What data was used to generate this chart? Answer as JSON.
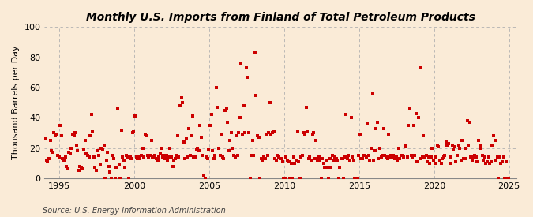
{
  "title": "Monthly U.S. Imports from Finland of Total Petroleum Products",
  "ylabel": "Thousand Barrels per Day",
  "source": "Source: U.S. Energy Information Administration",
  "bg_color": "#faebd7",
  "plot_bg_color": "#faebd7",
  "marker_color": "#cc0000",
  "marker_size": 3.5,
  "xlim": [
    1994.0,
    2025.5
  ],
  "ylim": [
    0,
    100
  ],
  "yticks": [
    0,
    20,
    40,
    60,
    80,
    100
  ],
  "xticks": [
    1995,
    2000,
    2005,
    2010,
    2015,
    2020,
    2025
  ],
  "data": {
    "1994-01": 26,
    "1994-02": 12,
    "1994-03": 11,
    "1994-04": 13,
    "1994-05": 25,
    "1994-06": 18,
    "1994-07": 17,
    "1994-08": 30,
    "1994-09": 28,
    "1994-10": 29,
    "1994-11": 15,
    "1994-12": 14,
    "1995-01": 35,
    "1995-02": 28,
    "1995-03": 13,
    "1995-04": 12,
    "1995-05": 14,
    "1995-06": 8,
    "1995-07": 6,
    "1995-08": 17,
    "1995-09": 16,
    "1995-10": 20,
    "1995-11": 29,
    "1995-12": 28,
    "1996-01": 30,
    "1996-02": 22,
    "1996-03": 18,
    "1996-04": 5,
    "1996-05": 8,
    "1996-06": 7,
    "1996-07": 6,
    "1996-08": 19,
    "1996-09": 25,
    "1996-10": 16,
    "1996-11": 15,
    "1996-12": 14,
    "1997-01": 28,
    "1997-02": 42,
    "1997-03": 31,
    "1997-04": 14,
    "1997-05": 7,
    "1997-06": 5,
    "1997-07": 18,
    "1997-08": 15,
    "1997-09": 9,
    "1997-10": 20,
    "1997-11": 19,
    "1997-12": 22,
    "1998-01": 0,
    "1998-02": 12,
    "1998-03": 17,
    "1998-04": 8,
    "1998-05": 4,
    "1998-06": 0,
    "1998-07": 15,
    "1998-08": 13,
    "1998-09": 0,
    "1998-10": 7,
    "1998-11": 46,
    "1998-12": 9,
    "1999-01": 0,
    "1999-02": 32,
    "1999-03": 14,
    "1999-04": 12,
    "1999-05": 7,
    "1999-06": 15,
    "1999-07": 14,
    "1999-08": 0,
    "1999-09": 14,
    "1999-10": 13,
    "1999-11": 30,
    "1999-12": 31,
    "2000-01": 41,
    "2000-02": 14,
    "2000-03": 13,
    "2000-04": 14,
    "2000-05": 13,
    "2000-06": 15,
    "2000-07": 20,
    "2000-08": 14,
    "2000-09": 29,
    "2000-10": 28,
    "2000-11": 15,
    "2000-12": 14,
    "2001-01": 15,
    "2001-02": 25,
    "2001-03": 14,
    "2001-04": 14,
    "2001-05": 15,
    "2001-06": 13,
    "2001-07": 12,
    "2001-08": 14,
    "2001-09": 16,
    "2001-10": 20,
    "2001-11": 14,
    "2001-12": 15,
    "2002-01": 13,
    "2002-02": 15,
    "2002-03": 12,
    "2002-04": 14,
    "2002-05": 20,
    "2002-06": 14,
    "2002-07": 8,
    "2002-08": 12,
    "2002-09": 13,
    "2002-10": 15,
    "2002-11": 28,
    "2002-12": 14,
    "2003-01": 48,
    "2003-02": 53,
    "2003-03": 50,
    "2003-04": 24,
    "2003-05": 13,
    "2003-06": 26,
    "2003-07": 14,
    "2003-08": 33,
    "2003-09": 15,
    "2003-10": 28,
    "2003-11": 41,
    "2003-12": 14,
    "2004-01": 14,
    "2004-02": 19,
    "2004-03": 20,
    "2004-04": 18,
    "2004-05": 35,
    "2004-06": 27,
    "2004-07": 15,
    "2004-08": 2,
    "2004-09": 0,
    "2004-10": 14,
    "2004-11": 13,
    "2004-12": 19,
    "2005-01": 35,
    "2005-02": 42,
    "2005-03": 18,
    "2005-04": 13,
    "2005-05": 15,
    "2005-06": 60,
    "2005-07": 47,
    "2005-08": 20,
    "2005-09": 15,
    "2005-10": 29,
    "2005-11": 14,
    "2005-12": 13,
    "2006-01": 45,
    "2006-02": 46,
    "2006-03": 37,
    "2006-04": 18,
    "2006-05": 25,
    "2006-06": 30,
    "2006-07": 20,
    "2006-08": 15,
    "2006-09": 14,
    "2006-10": 28,
    "2006-11": 15,
    "2006-12": 30,
    "2007-01": 40,
    "2007-02": 76,
    "2007-03": 29,
    "2007-04": 48,
    "2007-05": 30,
    "2007-06": 73,
    "2007-07": 67,
    "2007-08": 30,
    "2007-09": 0,
    "2007-10": 15,
    "2007-11": 25,
    "2007-12": 15,
    "2008-01": 83,
    "2008-02": 55,
    "2008-03": 28,
    "2008-04": 27,
    "2008-05": 0,
    "2008-06": 13,
    "2008-07": 12,
    "2008-08": 14,
    "2008-09": 13,
    "2008-10": 29,
    "2008-11": 15,
    "2008-12": 30,
    "2009-01": 50,
    "2009-02": 29,
    "2009-03": 30,
    "2009-04": 31,
    "2009-05": 13,
    "2009-06": 12,
    "2009-07": 15,
    "2009-08": 14,
    "2009-09": 13,
    "2009-10": 13,
    "2009-11": 11,
    "2009-12": 0,
    "2010-01": 0,
    "2010-02": 14,
    "2010-03": 12,
    "2010-04": 11,
    "2010-05": 0,
    "2010-06": 10,
    "2010-07": 0,
    "2010-08": 14,
    "2010-09": 10,
    "2010-10": 12,
    "2010-11": 31,
    "2010-12": 11,
    "2011-01": 0,
    "2011-02": 14,
    "2011-03": 15,
    "2011-04": 30,
    "2011-05": 29,
    "2011-06": 47,
    "2011-07": 31,
    "2011-08": 13,
    "2011-09": 14,
    "2011-10": 12,
    "2011-11": 29,
    "2011-12": 30,
    "2012-01": 13,
    "2012-02": 25,
    "2012-03": 12,
    "2012-04": 14,
    "2012-05": 12,
    "2012-06": 0,
    "2012-07": 13,
    "2012-08": 10,
    "2012-09": 7,
    "2012-10": 12,
    "2012-11": 7,
    "2012-12": 0,
    "2013-01": 13,
    "2013-02": 7,
    "2013-03": 15,
    "2013-04": 12,
    "2013-05": 14,
    "2013-06": 13,
    "2013-07": 12,
    "2013-08": 0,
    "2013-09": 7,
    "2013-10": 13,
    "2013-11": 13,
    "2013-12": 0,
    "2014-01": 14,
    "2014-02": 42,
    "2014-03": 13,
    "2014-04": 15,
    "2014-05": 12,
    "2014-06": 40,
    "2014-07": 14,
    "2014-08": 12,
    "2014-09": 0,
    "2014-10": 0,
    "2014-11": 0,
    "2014-12": 15,
    "2015-01": 29,
    "2015-02": 13,
    "2015-03": 13,
    "2015-04": 15,
    "2015-05": 15,
    "2015-06": 14,
    "2015-07": 36,
    "2015-08": 15,
    "2015-09": 12,
    "2015-10": 20,
    "2015-11": 56,
    "2015-12": 12,
    "2016-01": 18,
    "2016-02": 33,
    "2016-03": 37,
    "2016-04": 13,
    "2016-05": 20,
    "2016-06": 14,
    "2016-07": 15,
    "2016-08": 33,
    "2016-09": 15,
    "2016-10": 14,
    "2016-11": 13,
    "2016-12": 29,
    "2017-01": 14,
    "2017-02": 15,
    "2017-03": 14,
    "2017-04": 15,
    "2017-05": 13,
    "2017-06": 14,
    "2017-07": 12,
    "2017-08": 20,
    "2017-09": 13,
    "2017-10": 15,
    "2017-11": 15,
    "2017-12": 14,
    "2018-01": 21,
    "2018-02": 22,
    "2018-03": 14,
    "2018-04": 35,
    "2018-05": 46,
    "2018-06": 15,
    "2018-07": 14,
    "2018-08": 35,
    "2018-09": 15,
    "2018-10": 43,
    "2018-11": 11,
    "2018-12": 40,
    "2019-01": 73,
    "2019-02": 13,
    "2019-03": 14,
    "2019-04": 28,
    "2019-05": 14,
    "2019-06": 15,
    "2019-07": 11,
    "2019-08": 14,
    "2019-09": 10,
    "2019-10": 14,
    "2019-11": 20,
    "2019-12": 12,
    "2020-01": 14,
    "2020-02": 10,
    "2020-03": 22,
    "2020-04": 21,
    "2020-05": 12,
    "2020-06": 10,
    "2020-07": 13,
    "2020-08": 14,
    "2020-09": 15,
    "2020-10": 24,
    "2020-11": 22,
    "2020-12": 23,
    "2021-01": 10,
    "2021-02": 14,
    "2021-03": 22,
    "2021-04": 19,
    "2021-05": 21,
    "2021-06": 11,
    "2021-07": 15,
    "2021-08": 22,
    "2021-09": 20,
    "2021-10": 12,
    "2021-11": 25,
    "2021-12": 13,
    "2022-01": 13,
    "2022-02": 20,
    "2022-03": 38,
    "2022-04": 22,
    "2022-05": 37,
    "2022-06": 14,
    "2022-07": 12,
    "2022-08": 14,
    "2022-09": 15,
    "2022-10": 14,
    "2022-11": 11,
    "2022-12": 25,
    "2023-01": 20,
    "2023-02": 22,
    "2023-03": 15,
    "2023-04": 12,
    "2023-05": 14,
    "2023-06": 10,
    "2023-07": 11,
    "2023-08": 14,
    "2023-09": 10,
    "2023-10": 11,
    "2023-11": 22,
    "2023-12": 28,
    "2024-01": 12,
    "2024-02": 25,
    "2024-03": 14,
    "2024-04": 0,
    "2024-05": 14,
    "2024-06": 10,
    "2024-07": 11,
    "2024-08": 14,
    "2024-09": 0,
    "2024-10": 11,
    "2024-11": 0,
    "2024-12": 0
  }
}
